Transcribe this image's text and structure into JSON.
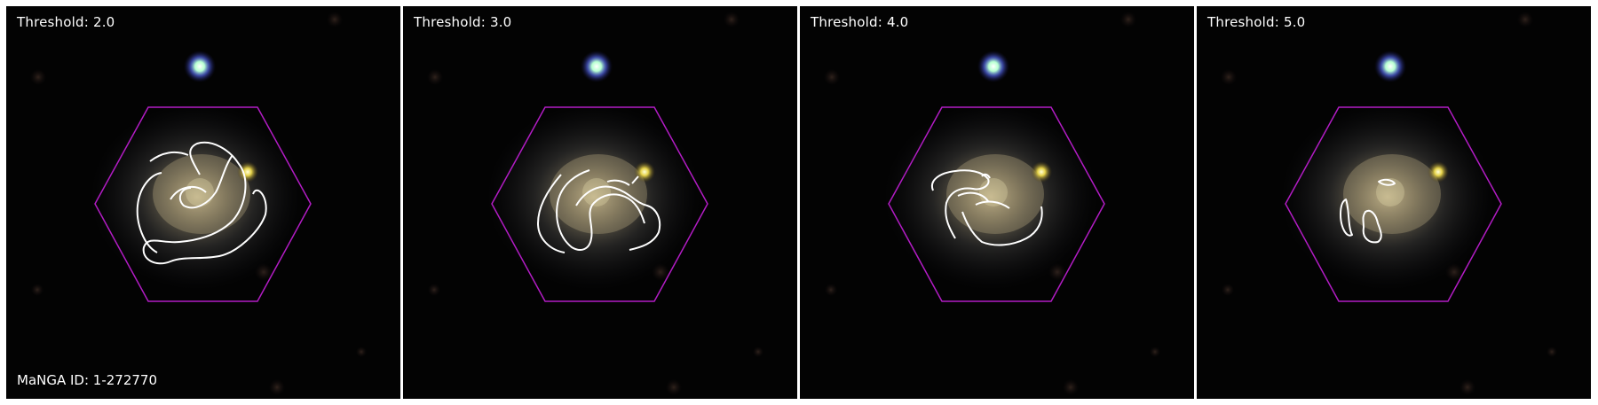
{
  "panels": [
    {
      "label": "Threshold: 2.0"
    },
    {
      "label": "Threshold: 3.0"
    },
    {
      "label": "Threshold: 4.0"
    },
    {
      "label": "Threshold: 5.0"
    }
  ],
  "galaxy_id": "MaNGA ID: 1-272770",
  "colors": {
    "background": "#020202",
    "hexagon": "#b21cc4",
    "contour": "#ffffff"
  },
  "icons": [
    "galaxy-image",
    "ifu-hexagon",
    "contour"
  ]
}
